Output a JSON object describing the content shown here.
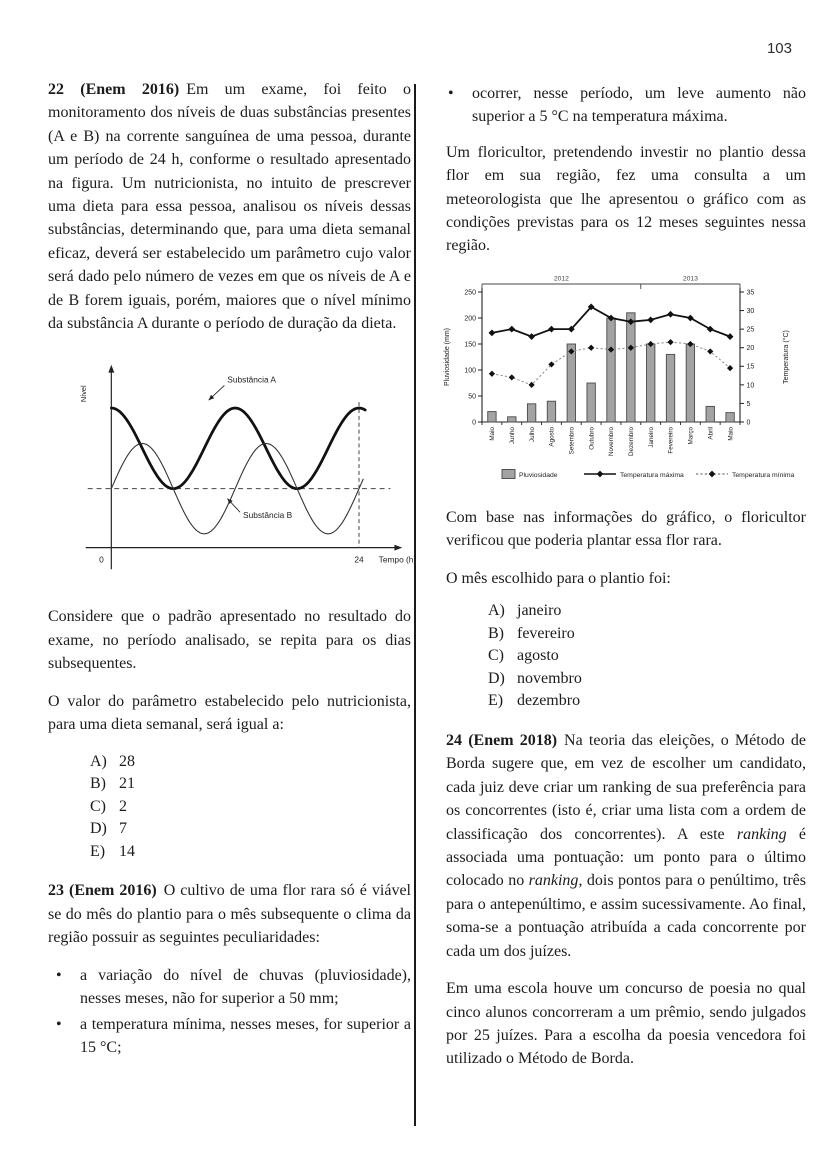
{
  "page_number": "103",
  "q22": {
    "lead": "22 (Enem 2016)",
    "body": "Em um exame, foi feito o monitoramento dos níveis de duas substâncias presentes (A e B) na corrente sanguínea de uma pessoa, durante um período de 24 h, conforme o resultado apresentado na figura. Um nutricionista, no intuito de prescrever uma dieta para essa pessoa, analisou os níveis dessas substâncias, determinando que, para uma dieta semanal eficaz, deverá ser estabelecido um parâmetro cujo valor será dado pelo número de vezes em que os níveis de A e de B forem iguais, porém, maiores que o nível mínimo da substância A durante o período de duração da dieta.",
    "para_considere": "Considere que o padrão apresentado no resultado do exame, no período analisado, se repita para os dias subsequentes.",
    "para_valor": "O valor do parâmetro estabelecido pelo nutricionista, para uma dieta semanal, será igual a:",
    "options": [
      {
        "letter": "A)",
        "text": "28"
      },
      {
        "letter": "B)",
        "text": "21"
      },
      {
        "letter": "C)",
        "text": "2"
      },
      {
        "letter": "D)",
        "text": "7"
      },
      {
        "letter": "E)",
        "text": "14"
      }
    ]
  },
  "q23": {
    "lead": "23 (Enem 2016)",
    "body": "O cultivo de uma flor rara só é viável se do mês do plantio para o mês subsequente o clima da região possuir as seguintes peculiaridades:",
    "bullets_left": [
      "a variação do nível de chuvas (pluviosidade), nesses meses, não for superior a 50 mm;",
      "a temperatura mínima, nesses meses, for superior a 15 °C;"
    ],
    "bullet_right": "ocorrer, nesse período, um leve aumento não superior a 5 °C na temperatura máxima.",
    "para_floricultor": "Um floricultor, pretendendo investir no plantio dessa flor em sua região, fez uma consulta a um meteorologista que lhe apresentou o gráfico com as condições previstas para os 12 meses seguintes nessa região.",
    "para_combase": "Com base nas informações do gráfico, o floricultor verificou que poderia plantar essa flor rara.",
    "para_mes": "O mês escolhido para o plantio foi:",
    "options": [
      {
        "letter": "A)",
        "text": "janeiro"
      },
      {
        "letter": "B)",
        "text": "fevereiro"
      },
      {
        "letter": "C)",
        "text": "agosto"
      },
      {
        "letter": "D)",
        "text": "novembro"
      },
      {
        "letter": "E)",
        "text": "dezembro"
      }
    ]
  },
  "q24": {
    "lead": "24 (Enem 2018)",
    "segments": [
      {
        "t": "Na teoria das eleições, o Método de Borda sugere que, em vez de escolher um candidato, cada juiz deve criar um ranking de sua preferência para os concorrentes (isto é, criar uma lista com a ordem de classificação dos concorrentes). A este "
      },
      {
        "t": "ranking",
        "i": true
      },
      {
        "t": " é associada uma pontuação: um ponto para o último colocado no "
      },
      {
        "t": "ranking",
        "i": true
      },
      {
        "t": ", dois pontos para o penúltimo, três para o antepenúltimo, e assim sucessivamente. Ao final, soma-se a pontuação atribuída a cada concorrente por cada um dos juízes."
      }
    ],
    "para2": "Em uma escola houve um concurso de poesia no qual cinco alunos concorreram a um prêmio, sendo julgados por 25 juízes. Para a escolha da poesia vencedora foi utilizado o Método de Borda."
  },
  "chart_data": [
    {
      "type": "line",
      "ylabel": "Nível",
      "xlabel": "Tempo (h)",
      "x_origin_label": "0",
      "x_end_label": "24",
      "x_range_h": [
        0,
        24
      ],
      "dashed_horizontal_at": "nível mínimo da substância A",
      "dashed_vertical_at_h": 24,
      "series": [
        {
          "name": "Substância A",
          "style": "thick",
          "period_h": 12,
          "shape": "cosseno, máximo em t = 0, mínimo sobre a linha tracejada",
          "relative_amplitude": 1.0
        },
        {
          "name": "Substância B",
          "style": "thin",
          "period_h": 12,
          "shape": "seno em torno da linha tracejada, começa subindo em t = 0",
          "relative_amplitude": 0.55
        }
      ]
    },
    {
      "type": "combo",
      "categories": [
        "Maio",
        "Junho",
        "Julho",
        "Agosto",
        "Setembro",
        "Outubro",
        "Novembro",
        "Dezembro",
        "Janeiro",
        "Fevereiro",
        "Março",
        "Abril",
        "Maio"
      ],
      "year_groups": [
        {
          "label": "2012",
          "months": 8
        },
        {
          "label": "2013",
          "months": 5
        }
      ],
      "bars": {
        "name": "Pluviosidade",
        "axis": "left",
        "values": [
          20,
          10,
          35,
          40,
          150,
          75,
          200,
          210,
          150,
          130,
          150,
          30,
          18
        ]
      },
      "lines": [
        {
          "name": "Temperatura máxima",
          "axis": "right",
          "style": "solid",
          "values": [
            24,
            25,
            23,
            25,
            25,
            31,
            28,
            27,
            27.5,
            29,
            28,
            25,
            23
          ]
        },
        {
          "name": "Temperatura mínima",
          "axis": "right",
          "style": "dotted",
          "values": [
            13,
            12,
            10,
            15.5,
            19,
            20,
            19.5,
            20,
            21,
            21.5,
            21,
            19,
            14.5
          ]
        }
      ],
      "left_axis": {
        "label": "Pluviosidade (mm)",
        "min": 0,
        "max": 250,
        "step": 50
      },
      "right_axis": {
        "label": "Temperatura (°C)",
        "min": 0,
        "max": 35,
        "step": 5
      },
      "legend": [
        "Pluviosidade",
        "Temperatura máxima",
        "Temperatura mínima"
      ]
    }
  ]
}
